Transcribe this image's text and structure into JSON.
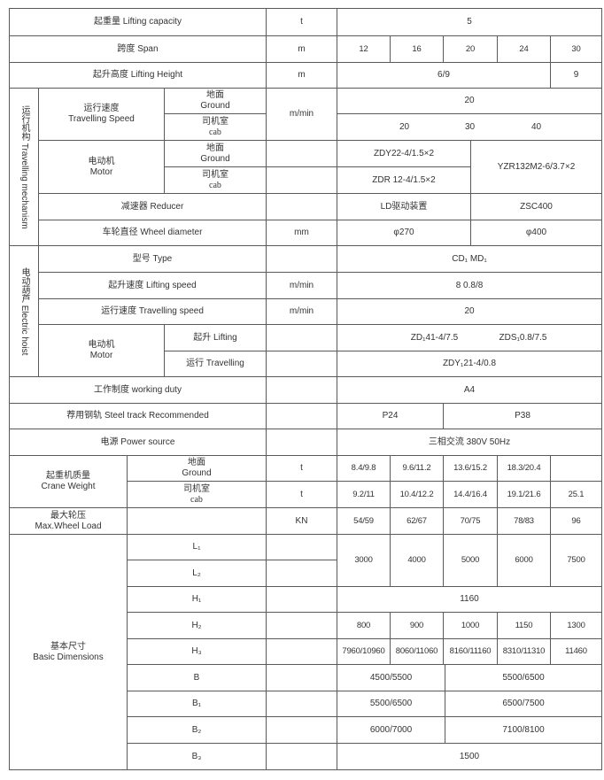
{
  "lifting_capacity": {
    "label": "起重量  Lifting  capacity",
    "unit": "t",
    "value": "5"
  },
  "span": {
    "label": "跨度 Span",
    "unit": "m",
    "values": [
      "12",
      "16",
      "20",
      "24",
      "30"
    ]
  },
  "lifting_height": {
    "label": "起升高度  Lifting  Height",
    "unit": "m",
    "values": [
      "6/9",
      "9"
    ]
  },
  "travelling_mechanism": {
    "group_label": "运行机构  Travelling mechanism",
    "travelling_speed": {
      "label": "运行速度\nTravelling Speed",
      "ground_label": "地面\nGround",
      "cab_label": "司机室\ncab",
      "unit": "m/min",
      "ground_value": "20",
      "cab_values": [
        "20",
        "30",
        "40"
      ]
    },
    "motor": {
      "label": "电动机\nMotor",
      "ground_label": "地面\nGround",
      "cab_label": "司机室\ncab",
      "ground_value": "ZDY22-4/1.5×2",
      "cab_value": "ZDR  12-4/1.5×2",
      "right_value": "YZR132M2-6/3.7×2"
    },
    "reducer": {
      "label": "减速器  Reducer",
      "values": [
        "LD驱动装置",
        "ZSC400"
      ]
    },
    "wheel_diameter": {
      "label": "车轮直径  Wheel diameter",
      "unit": "mm",
      "values": [
        "φ270",
        "φ400"
      ]
    }
  },
  "electric_hoist": {
    "group_label": "电动葫芦  Electric hoist",
    "type": {
      "label": "型号  Type",
      "value": "CD₁          MD₁"
    },
    "lifting_speed": {
      "label": "起升速度  Lifting speed",
      "unit": "m/min",
      "value": "8          0.8/8"
    },
    "travelling_speed": {
      "label": "运行速度  Travelling speed",
      "unit": "m/min",
      "value": "20"
    },
    "motor": {
      "label": "电动机\nMotor",
      "lifting_label": "起升  Lifting",
      "travelling_label": "运行  Travelling",
      "lifting_values": [
        "ZD₁41-4/7.5",
        "ZDS₁0.8/7.5"
      ],
      "travelling_value": "ZDY₁21-4/0.8"
    }
  },
  "working_duty": {
    "label": "工作制度  working  duty",
    "value": "A4"
  },
  "steel_track": {
    "label": "荐用钢轨  Steel track Recommended",
    "values": [
      "P24",
      "P38"
    ]
  },
  "power_source": {
    "label": "电源  Power source",
    "value": "三相交流  380V  50Hz"
  },
  "crane_weight": {
    "label": "起重机质量\nCrane Weight",
    "ground_label": "地面\nGround",
    "cab_label": "司机室\ncab",
    "unit": "t",
    "ground_values": [
      "8.4/9.8",
      "9.6/11.2",
      "13.6/15.2",
      "18.3/20.4",
      ""
    ],
    "cab_values": [
      "9.2/11",
      "10.4/12.2",
      "14.4/16.4",
      "19.1/21.6",
      "25.1"
    ]
  },
  "max_wheel_load": {
    "label": "最大轮压\nMax.Wheel Load",
    "unit": "KN",
    "values": [
      "54/59",
      "62/67",
      "70/75",
      "78/83",
      "96"
    ]
  },
  "basic_dimensions": {
    "label": "基本尺寸\nBasic  Dimensions",
    "L1": {
      "label": "L₁"
    },
    "L2": {
      "label": "L₂"
    },
    "L_values": [
      "3000",
      "4000",
      "5000",
      "6000",
      "7500"
    ],
    "H1": {
      "label": "H₁",
      "value": "1160"
    },
    "H2": {
      "label": "H₂",
      "values": [
        "800",
        "900",
        "1000",
        "1150",
        "1300"
      ]
    },
    "H3": {
      "label": "H₃",
      "values": [
        "7960/10960",
        "8060/11060",
        "8160/11160",
        "8310/11310",
        "11460"
      ]
    },
    "B": {
      "label": "B",
      "values": [
        "4500/5500",
        "5500/6500"
      ]
    },
    "B1": {
      "label": "B₁",
      "values": [
        "5500/6500",
        "6500/7500"
      ]
    },
    "B2": {
      "label": "B₂",
      "values": [
        "6000/7000",
        "7100/8100"
      ]
    },
    "B3": {
      "label": "B₃",
      "value": "1500"
    }
  }
}
